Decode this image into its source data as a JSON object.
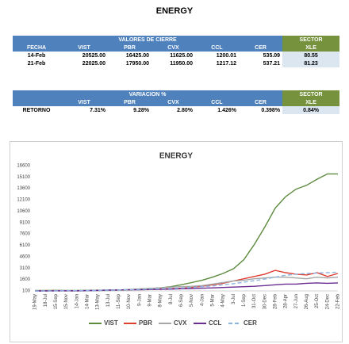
{
  "title": "ENERGY",
  "table1": {
    "group_header": "VALORES DE CIERRE",
    "sector_header": "SECTOR",
    "columns": [
      "FECHA",
      "VIST",
      "PBR",
      "CVX",
      "CCL",
      "CER",
      "XLE"
    ],
    "rows": [
      [
        "14-Feb",
        "20525.00",
        "16425.00",
        "11625.00",
        "1200.01",
        "535.09",
        "80.55"
      ],
      [
        "21-Feb",
        "22025.00",
        "17950.00",
        "11950.00",
        "1217.12",
        "537.21",
        "81.23"
      ]
    ]
  },
  "table2": {
    "group_header": "VARIACION %",
    "sector_header": "SECTOR",
    "columns": [
      null,
      "VIST",
      "PBR",
      "CVX",
      "CCL",
      "CER",
      "XLE"
    ],
    "rows": [
      [
        "RETORNO",
        "7.31%",
        "9.28%",
        "2.80%",
        "1.426%",
        "0.398%",
        "0.84%"
      ]
    ]
  },
  "chart_data": {
    "type": "line",
    "title": "ENERGY",
    "categories": [
      "19-May",
      "18-Jul",
      "15-Sep",
      "15-Nov",
      "14-Jan",
      "14-Mar",
      "13-May",
      "13-Jul",
      "11-Sep",
      "10-Nov",
      "9-Jan",
      "9-Mar",
      "8-May",
      "8-Jul",
      "6-Sep",
      "5-Nov",
      "4-Jan",
      "5-Mar",
      "4-May",
      "3-Jul",
      "1-Sep",
      "31-Oct",
      "30-Dec",
      "28-Feb",
      "28-Apr",
      "27-Jun",
      "26-Aug",
      "25-Oct",
      "24-Dec",
      "22-Feb"
    ],
    "series": [
      {
        "name": "VIST",
        "color": "#5b8a3c",
        "values": [
          150,
          160,
          170,
          160,
          150,
          170,
          190,
          200,
          230,
          280,
          350,
          420,
          500,
          650,
          900,
          1200,
          1500,
          1900,
          2400,
          3000,
          4200,
          6200,
          8500,
          11000,
          12500,
          13500,
          14000,
          14800,
          15500,
          15500
        ]
      },
      {
        "name": "PBR",
        "color": "#e03c31",
        "values": [
          100,
          110,
          120,
          110,
          100,
          120,
          150,
          180,
          220,
          250,
          300,
          320,
          350,
          400,
          450,
          550,
          700,
          900,
          1100,
          1400,
          1700,
          2000,
          2300,
          2800,
          2500,
          2300,
          2200,
          2500,
          2000,
          2400
        ]
      },
      {
        "name": "CVX",
        "color": "#a6a6a6",
        "values": [
          100,
          105,
          110,
          110,
          105,
          110,
          120,
          140,
          180,
          250,
          350,
          420,
          500,
          600,
          650,
          700,
          800,
          1000,
          1200,
          1400,
          1500,
          1700,
          1800,
          1900,
          1900,
          1800,
          1700,
          1900,
          1800,
          1900
        ]
      },
      {
        "name": "CCL",
        "color": "#6a2c91",
        "values": [
          100,
          105,
          110,
          115,
          120,
          140,
          160,
          200,
          220,
          250,
          260,
          280,
          300,
          330,
          380,
          400,
          450,
          500,
          550,
          600,
          650,
          700,
          800,
          900,
          1000,
          1000,
          1100,
          1150,
          1100,
          1150
        ]
      },
      {
        "name": "CER",
        "color": "#8db3e2",
        "dashed": true,
        "values": [
          100,
          105,
          110,
          120,
          130,
          150,
          170,
          200,
          230,
          260,
          300,
          340,
          380,
          430,
          480,
          550,
          650,
          750,
          900,
          1050,
          1250,
          1450,
          1650,
          1900,
          2150,
          2300,
          2400,
          2450,
          2500,
          2550
        ]
      }
    ],
    "ylim": [
      100,
      17000
    ],
    "yticks": [
      100,
      1600,
      3100,
      4600,
      6100,
      7600,
      9100,
      10600,
      12100,
      13600,
      15100,
      16600
    ],
    "legend": "bottom"
  }
}
